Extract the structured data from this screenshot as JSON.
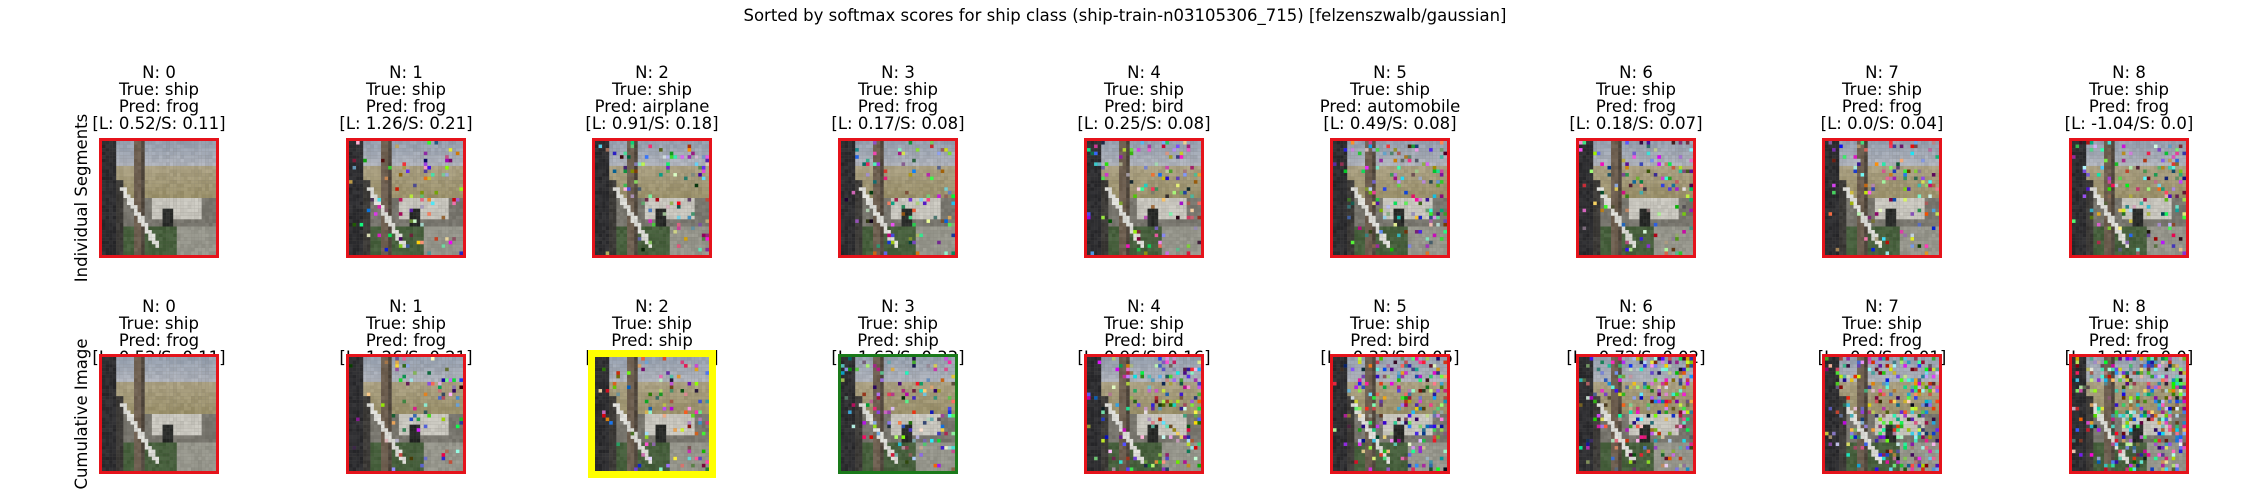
{
  "figure": {
    "title": "Sorted by softmax scores for ship class (ship-train-n03105306_715) [felzenszwalb/gaussian]"
  },
  "colors": {
    "incorrect_border": "#e5131b",
    "correct_border": "#1a7a1a",
    "best_border": "#ffff00"
  },
  "rows": [
    {
      "label": "Individual Segments",
      "panels": [
        {
          "n": "N: 0",
          "true": "True: ship",
          "pred": "Pred: frog",
          "scores": "[L: 0.52/S: 0.11]",
          "border": "incorrect",
          "noise": 0.0
        },
        {
          "n": "N: 1",
          "true": "True: ship",
          "pred": "Pred: frog",
          "scores": "[L: 1.26/S: 0.21]",
          "border": "incorrect",
          "noise": 0.12
        },
        {
          "n": "N: 2",
          "true": "True: ship",
          "pred": "Pred: airplane",
          "scores": "[L: 0.91/S: 0.18]",
          "border": "incorrect",
          "noise": 0.14
        },
        {
          "n": "N: 3",
          "true": "True: ship",
          "pred": "Pred: frog",
          "scores": "[L: 0.17/S: 0.08]",
          "border": "incorrect",
          "noise": 0.14
        },
        {
          "n": "N: 4",
          "true": "True: ship",
          "pred": "Pred: bird",
          "scores": "[L: 0.25/S: 0.08]",
          "border": "incorrect",
          "noise": 0.16
        },
        {
          "n": "N: 5",
          "true": "True: ship",
          "pred": "Pred: automobile",
          "scores": "[L: 0.49/S: 0.08]",
          "border": "incorrect",
          "noise": 0.16
        },
        {
          "n": "N: 6",
          "true": "True: ship",
          "pred": "Pred: frog",
          "scores": "[L: 0.18/S: 0.07]",
          "border": "incorrect",
          "noise": 0.16
        },
        {
          "n": "N: 7",
          "true": "True: ship",
          "pred": "Pred: frog",
          "scores": "[L: 0.0/S: 0.04]",
          "border": "incorrect",
          "noise": 0.16
        },
        {
          "n": "N: 8",
          "true": "True: ship",
          "pred": "Pred: frog",
          "scores": "[L: -1.04/S: 0.0]",
          "border": "incorrect",
          "noise": 0.22
        }
      ]
    },
    {
      "label": "Cumulative Image",
      "panels": [
        {
          "n": "N: 0",
          "true": "True: ship",
          "pred": "Pred: frog",
          "scores": "[L: 0.52/S: 0.11]",
          "border": "incorrect",
          "noise": 0.0
        },
        {
          "n": "N: 1",
          "true": "True: ship",
          "pred": "Pred: frog",
          "scores": "[L: 1.26/S: 0.21]",
          "border": "incorrect",
          "noise": 0.12
        },
        {
          "n": "N: 2",
          "true": "True: ship",
          "pred": "Pred: ship",
          "scores": "[L: 1.94/S: 0.42]",
          "border": "best",
          "noise": 0.16
        },
        {
          "n": "N: 3",
          "true": "True: ship",
          "pred": "Pred: ship",
          "scores": "[L: 1.63/S: 0.33]",
          "border": "correct",
          "noise": 0.2
        },
        {
          "n": "N: 4",
          "true": "True: ship",
          "pred": "Pred: bird",
          "scores": "[L: 0.96/S: 0.16]",
          "border": "incorrect",
          "noise": 0.26
        },
        {
          "n": "N: 5",
          "true": "True: ship",
          "pred": "Pred: bird",
          "scores": "[L: -0.33/S: 0.05]",
          "border": "incorrect",
          "noise": 0.32
        },
        {
          "n": "N: 6",
          "true": "True: ship",
          "pred": "Pred: frog",
          "scores": "[L: -0.72/S: 0.02]",
          "border": "incorrect",
          "noise": 0.38
        },
        {
          "n": "N: 7",
          "true": "True: ship",
          "pred": "Pred: frog",
          "scores": "[L: -0.9/S: 0.01]",
          "border": "incorrect",
          "noise": 0.44
        },
        {
          "n": "N: 8",
          "true": "True: ship",
          "pred": "Pred: frog",
          "scores": "[L: -1.25/S: 0.0]",
          "border": "incorrect",
          "noise": 0.5
        }
      ]
    }
  ]
}
